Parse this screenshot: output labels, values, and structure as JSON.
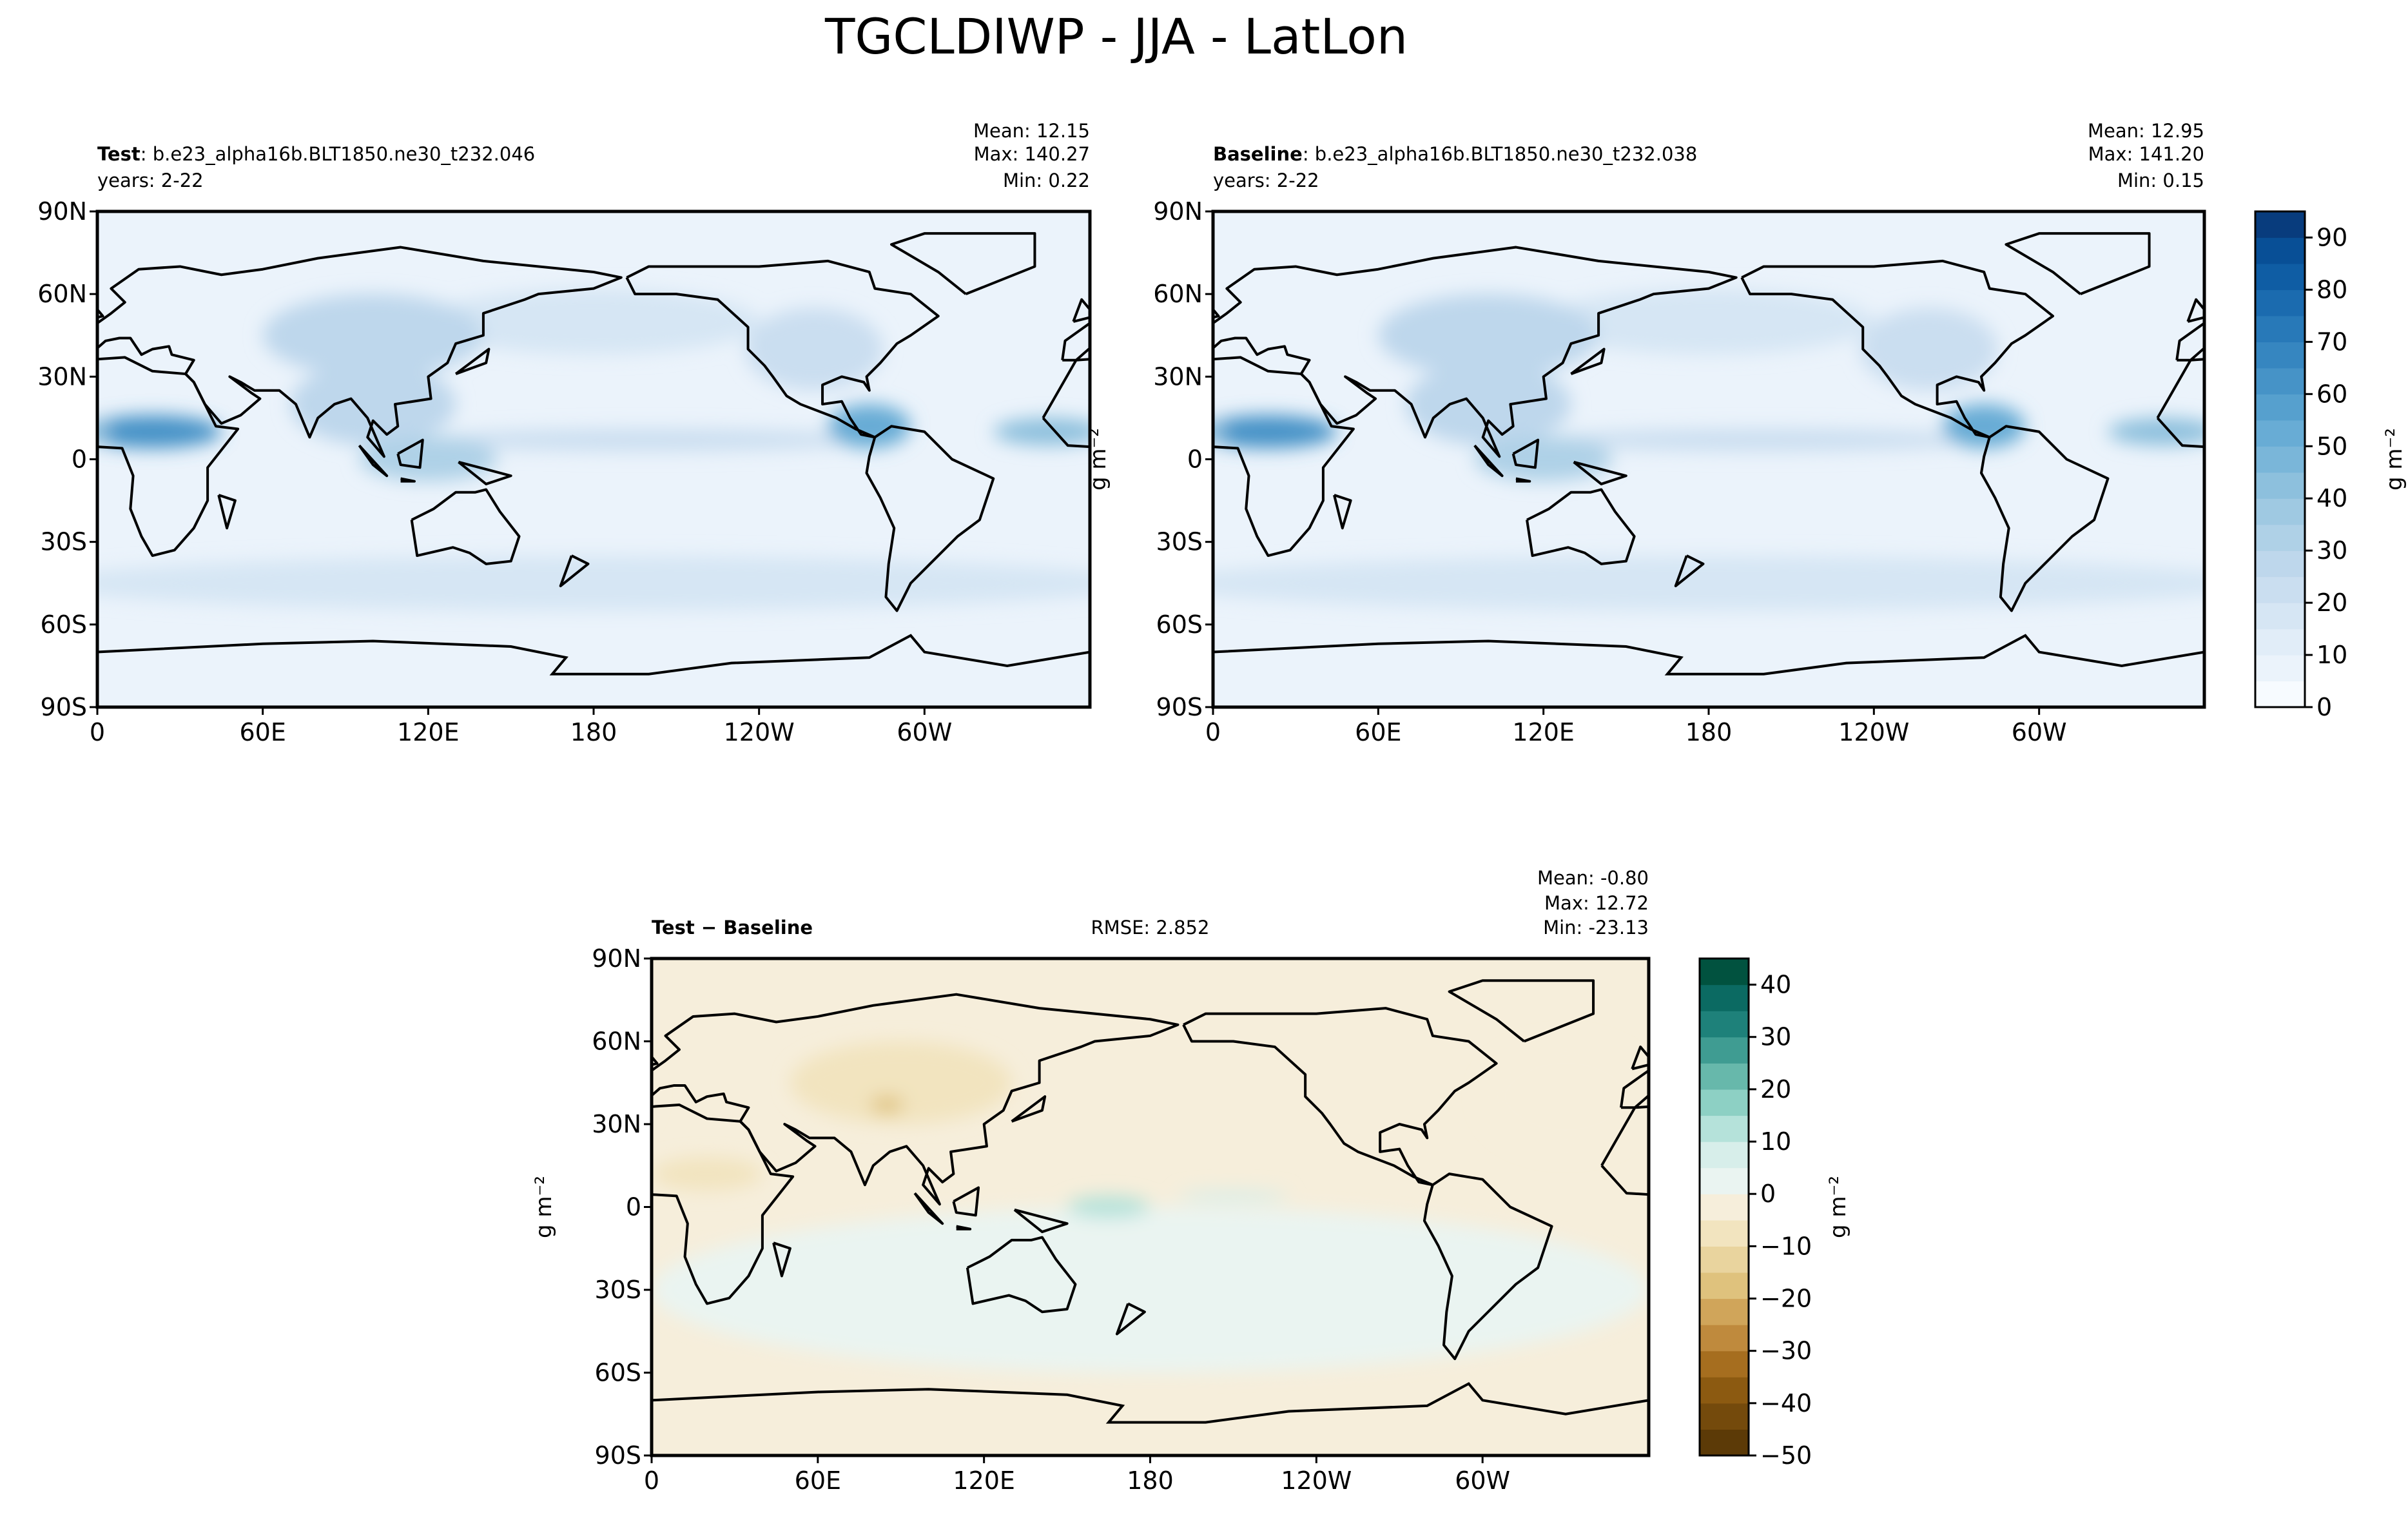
{
  "title": "TGCLDIWP - JJA - LatLon",
  "chart_data": [
    {
      "type": "map",
      "subtitle_label": "Test",
      "subtitle": ": b.e23_alpha16b.BLT1850.ne30_t232.046",
      "years": "years: 2-22",
      "stats": [
        "Mean: 12.15",
        "Max: 140.27",
        "Min:  0.22"
      ],
      "xlim": [
        0,
        360
      ],
      "ylim": [
        -90,
        90
      ],
      "xticks": [
        0,
        {
          "value": 60,
          "label": "60E"
        },
        {
          "value": 120,
          "label": "120E"
        },
        180,
        {
          "value": 240,
          "label": "120W"
        },
        {
          "value": 300,
          "label": "60W"
        }
      ],
      "yticks": [
        {
          "value": 90,
          "label": "90N"
        },
        {
          "value": 60,
          "label": "60N"
        },
        {
          "value": 30,
          "label": "30N"
        },
        0,
        {
          "value": -30,
          "label": "30S"
        },
        {
          "value": -60,
          "label": "60S"
        },
        {
          "value": -90,
          "label": "90S"
        }
      ],
      "colors": [
        "#f7fbff",
        "#ebf3fb",
        "#e1edf8",
        "#d6e6f4",
        "#cadef0",
        "#bed7ec",
        "#afd1e7",
        "#9fc9e2",
        "#8dc0dd",
        "#7ab6d9",
        "#68acd5",
        "#56a0ce",
        "#4693c7",
        "#3686c0",
        "#2879b8",
        "#1b6baf",
        "#0f5da4",
        "#084f96",
        "#083c7d"
      ]
    },
    {
      "type": "map",
      "subtitle_label": "Baseline",
      "subtitle": ": b.e23_alpha16b.BLT1850.ne30_t232.038",
      "years": "years: 2-22",
      "stats": [
        "Mean: 12.95",
        "Max: 141.20",
        "Min:  0.15"
      ],
      "ylabel": "g m⁻²",
      "xlim": [
        0,
        360
      ],
      "ylim": [
        -90,
        90
      ],
      "xticks": [
        0,
        {
          "value": 60,
          "label": "60E"
        },
        {
          "value": 120,
          "label": "120E"
        },
        180,
        {
          "value": 240,
          "label": "120W"
        },
        {
          "value": 300,
          "label": "60W"
        }
      ],
      "yticks": [
        {
          "value": 90,
          "label": "90N"
        },
        {
          "value": 60,
          "label": "60N"
        },
        {
          "value": 30,
          "label": "30N"
        },
        0,
        {
          "value": -30,
          "label": "30S"
        },
        {
          "value": -60,
          "label": "60S"
        },
        {
          "value": -90,
          "label": "90S"
        }
      ],
      "colors": [
        "#f7fbff",
        "#ebf3fb",
        "#e1edf8",
        "#d6e6f4",
        "#cadef0",
        "#bed7ec",
        "#afd1e7",
        "#9fc9e2",
        "#8dc0dd",
        "#7ab6d9",
        "#68acd5",
        "#56a0ce",
        "#4693c7",
        "#3686c0",
        "#2879b8",
        "#1b6baf",
        "#0f5da4",
        "#084f96",
        "#083c7d"
      ],
      "clim": [
        0,
        95
      ],
      "cticks": [
        0,
        10,
        20,
        30,
        40,
        50,
        60,
        70,
        80,
        90
      ],
      "colorbar_label": "g m⁻²"
    },
    {
      "type": "map",
      "subtitle_label": "Test − Baseline",
      "rmse": "RMSE: 2.852",
      "stats": [
        "Mean: -0.80",
        "Max: 12.72",
        "Min: -23.13"
      ],
      "ylabel": "g m⁻²",
      "xlim": [
        0,
        360
      ],
      "ylim": [
        -90,
        90
      ],
      "xticks": [
        0,
        {
          "value": 60,
          "label": "60E"
        },
        {
          "value": 120,
          "label": "120E"
        },
        180,
        {
          "value": 240,
          "label": "120W"
        },
        {
          "value": 300,
          "label": "60W"
        }
      ],
      "yticks": [
        {
          "value": 90,
          "label": "90N"
        },
        {
          "value": 60,
          "label": "60N"
        },
        {
          "value": 30,
          "label": "30N"
        },
        0,
        {
          "value": -30,
          "label": "30S"
        },
        {
          "value": -60,
          "label": "60S"
        },
        {
          "value": -90,
          "label": "90S"
        }
      ],
      "colors": [
        "#5c3a07",
        "#744a0c",
        "#8c5a11",
        "#a66e1f",
        "#bf8a3d",
        "#d0a55a",
        "#dfc27d",
        "#e9d49e",
        "#f2e4bf",
        "#f6eedb",
        "#eaf4f1",
        "#d7eeea",
        "#b5e2da",
        "#8dd0c4",
        "#67b8ab",
        "#3f9c92",
        "#1e817a",
        "#0b6a62",
        "#01523f"
      ],
      "clim": [
        -50,
        45
      ],
      "cticks": [
        {
          "value": -50,
          "label": "−50"
        },
        {
          "value": -40,
          "label": "−40"
        },
        {
          "value": -30,
          "label": "−30"
        },
        {
          "value": -20,
          "label": "−20"
        },
        {
          "value": -10,
          "label": "−10"
        },
        0,
        10,
        20,
        30,
        40
      ],
      "colorbar_label": "g m⁻²"
    }
  ]
}
